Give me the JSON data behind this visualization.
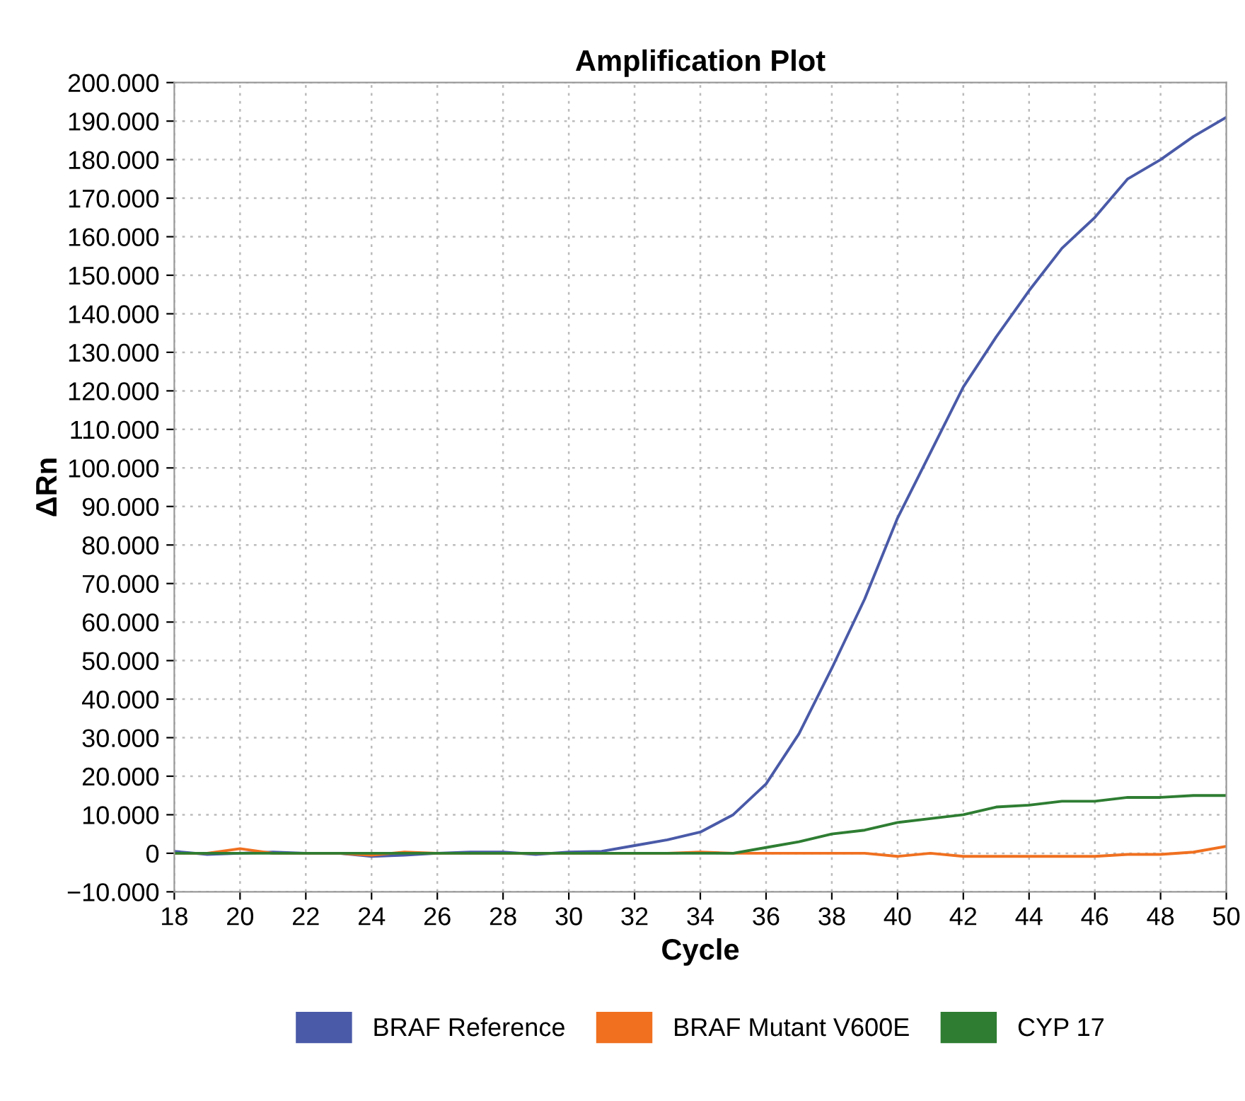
{
  "chart_data": {
    "type": "line",
    "title": "Amplification Plot",
    "xlabel": "Cycle",
    "ylabel": "ΔRn",
    "x": [
      18,
      19,
      20,
      21,
      22,
      23,
      24,
      25,
      26,
      27,
      28,
      29,
      30,
      31,
      32,
      33,
      34,
      35,
      36,
      37,
      38,
      39,
      40,
      41,
      42,
      43,
      44,
      45,
      46,
      47,
      48,
      49,
      50
    ],
    "series": [
      {
        "name": "BRAF Reference",
        "color": "#4a5aa8",
        "values": [
          500,
          -300,
          0,
          300,
          0,
          0,
          -800,
          -500,
          0,
          300,
          300,
          -300,
          300,
          500,
          2000,
          3500,
          5500,
          10000,
          18000,
          31000,
          48000,
          66000,
          87000,
          104000,
          121000,
          134000,
          146000,
          157000,
          165000,
          175000,
          180000,
          186000,
          191000
        ]
      },
      {
        "name": "BRAF Mutant V600E",
        "color": "#f07020",
        "values": [
          0,
          0,
          1200,
          0,
          0,
          0,
          -500,
          300,
          0,
          0,
          0,
          0,
          0,
          0,
          0,
          0,
          300,
          0,
          0,
          0,
          0,
          0,
          -800,
          0,
          -800,
          -800,
          -800,
          -800,
          -800,
          -300,
          -300,
          300,
          1800
        ]
      },
      {
        "name": "CYP 17",
        "color": "#2e7d32",
        "values": [
          0,
          0,
          0,
          0,
          0,
          0,
          0,
          0,
          0,
          0,
          0,
          0,
          0,
          0,
          0,
          0,
          0,
          0,
          1500,
          3000,
          5000,
          6000,
          8000,
          9000,
          10000,
          12000,
          12500,
          13500,
          13500,
          14500,
          14500,
          15000,
          15000
        ]
      }
    ],
    "xlim": [
      18,
      50
    ],
    "xticks": [
      18,
      20,
      22,
      24,
      26,
      28,
      30,
      32,
      34,
      36,
      38,
      40,
      42,
      44,
      46,
      48,
      50
    ],
    "ylim": [
      -10000,
      200000
    ],
    "yticks": [
      {
        "value": -10000,
        "label": "−10.000"
      },
      0,
      {
        "value": 10000,
        "label": "10.000"
      },
      {
        "value": 20000,
        "label": "20.000"
      },
      {
        "value": 30000,
        "label": "30.000"
      },
      {
        "value": 40000,
        "label": "40.000"
      },
      {
        "value": 50000,
        "label": "50.000"
      },
      {
        "value": 60000,
        "label": "60.000"
      },
      {
        "value": 70000,
        "label": "70.000"
      },
      {
        "value": 80000,
        "label": "80.000"
      },
      {
        "value": 90000,
        "label": "90.000"
      },
      {
        "value": 100000,
        "label": "100.000"
      },
      {
        "value": 110000,
        "label": "110.000"
      },
      {
        "value": 120000,
        "label": "120.000"
      },
      {
        "value": 130000,
        "label": "130.000"
      },
      {
        "value": 140000,
        "label": "140.000"
      },
      {
        "value": 150000,
        "label": "150.000"
      },
      {
        "value": 160000,
        "label": "160.000"
      },
      {
        "value": 170000,
        "label": "170.000"
      },
      {
        "value": 180000,
        "label": "180.000"
      },
      {
        "value": 190000,
        "label": "190.000"
      },
      {
        "value": 200000,
        "label": "200.000"
      }
    ],
    "grid": true,
    "legend": "bottom",
    "marker": "none",
    "line_style": "solid"
  }
}
